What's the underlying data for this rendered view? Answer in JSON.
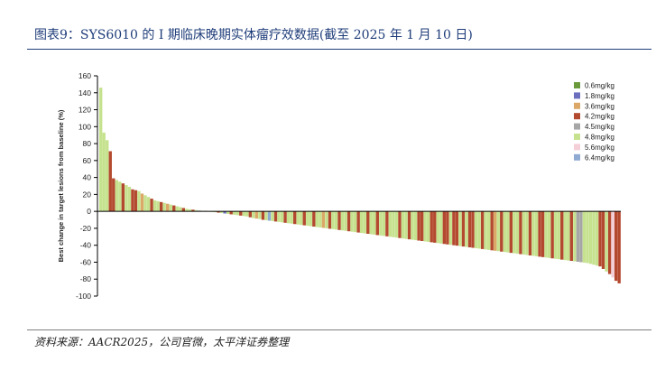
{
  "figure_title": "图表9：SYS6010 的 I 期临床晚期实体瘤疗效数据(截至 2025 年 1 月 10 日)",
  "source_note": "资料来源：AACR2025，公司官微，太平洋证券整理",
  "chart_data": {
    "type": "bar",
    "title": "",
    "xlabel": "",
    "ylabel": "Best change in target lesions from baseline (%)",
    "ylim": [
      -100,
      160
    ],
    "yticks": [
      160,
      140,
      120,
      100,
      80,
      60,
      40,
      20,
      0,
      -20,
      -40,
      -60,
      -80,
      -100
    ],
    "grid": false,
    "legend_position": "top-right",
    "series": [
      {
        "name": "0.6mg/kg",
        "color": "#6a9a3c"
      },
      {
        "name": "1.8mg/kg",
        "color": "#6b6fbd"
      },
      {
        "name": "3.6mg/kg",
        "color": "#dba868"
      },
      {
        "name": "4.2mg/kg",
        "color": "#b3492e"
      },
      {
        "name": "4.5mg/kg",
        "color": "#a6a6a6"
      },
      {
        "name": "4.8mg/kg",
        "color": "#c6e28f"
      },
      {
        "name": "5.6mg/kg",
        "color": "#f4cfd7"
      },
      {
        "name": "6.4mg/kg",
        "color": "#8eaad2"
      }
    ],
    "bars": [
      {
        "v": 146,
        "s": 5
      },
      {
        "v": 93,
        "s": 5
      },
      {
        "v": 84,
        "s": 5
      },
      {
        "v": 71,
        "s": 3
      },
      {
        "v": 39,
        "s": 3
      },
      {
        "v": 37,
        "s": 5
      },
      {
        "v": 35,
        "s": 5
      },
      {
        "v": 33,
        "s": 3
      },
      {
        "v": 31,
        "s": 5
      },
      {
        "v": 29,
        "s": 5
      },
      {
        "v": 26,
        "s": 3
      },
      {
        "v": 25,
        "s": 3
      },
      {
        "v": 24,
        "s": 5
      },
      {
        "v": 21,
        "s": 2
      },
      {
        "v": 19,
        "s": 5
      },
      {
        "v": 17,
        "s": 5
      },
      {
        "v": 15,
        "s": 3
      },
      {
        "v": 13,
        "s": 5
      },
      {
        "v": 12,
        "s": 5
      },
      {
        "v": 11,
        "s": 3
      },
      {
        "v": 10,
        "s": 5
      },
      {
        "v": 9,
        "s": 2
      },
      {
        "v": 8,
        "s": 5
      },
      {
        "v": 7,
        "s": 3
      },
      {
        "v": 6,
        "s": 5
      },
      {
        "v": 5,
        "s": 5
      },
      {
        "v": 4,
        "s": 3
      },
      {
        "v": 3,
        "s": 5
      },
      {
        "v": 2.5,
        "s": 5
      },
      {
        "v": 2,
        "s": 3
      },
      {
        "v": 1.5,
        "s": 5
      },
      {
        "v": 1,
        "s": 4
      },
      {
        "v": 0.7,
        "s": 5
      },
      {
        "v": 0.5,
        "s": 3
      },
      {
        "v": 0.3,
        "s": 5
      },
      {
        "v": 0,
        "s": 5
      },
      {
        "v": -1,
        "s": 5
      },
      {
        "v": -1.5,
        "s": 3
      },
      {
        "v": -2,
        "s": 5
      },
      {
        "v": -2.5,
        "s": 1
      },
      {
        "v": -3,
        "s": 5
      },
      {
        "v": -3.5,
        "s": 3
      },
      {
        "v": -4,
        "s": 5
      },
      {
        "v": -4.5,
        "s": 5
      },
      {
        "v": -5,
        "s": 3
      },
      {
        "v": -5.5,
        "s": 5
      },
      {
        "v": -6,
        "s": 5
      },
      {
        "v": -7,
        "s": 3
      },
      {
        "v": -8,
        "s": 5
      },
      {
        "v": -8.5,
        "s": 2
      },
      {
        "v": -9,
        "s": 5
      },
      {
        "v": -10,
        "s": 3
      },
      {
        "v": -10.5,
        "s": 5
      },
      {
        "v": -11,
        "s": 7
      },
      {
        "v": -11.5,
        "s": 5
      },
      {
        "v": -12,
        "s": 3
      },
      {
        "v": -12.5,
        "s": 5
      },
      {
        "v": -13,
        "s": 5
      },
      {
        "v": -13.5,
        "s": 3
      },
      {
        "v": -14,
        "s": 5
      },
      {
        "v": -14.5,
        "s": 5
      },
      {
        "v": -15,
        "s": 3
      },
      {
        "v": -15.5,
        "s": 5
      },
      {
        "v": -16,
        "s": 5
      },
      {
        "v": -16.5,
        "s": 3
      },
      {
        "v": -17,
        "s": 5
      },
      {
        "v": -17.5,
        "s": 5
      },
      {
        "v": -18,
        "s": 3
      },
      {
        "v": -18.5,
        "s": 5
      },
      {
        "v": -19,
        "s": 5
      },
      {
        "v": -19.5,
        "s": 2
      },
      {
        "v": -20,
        "s": 5
      },
      {
        "v": -20.5,
        "s": 3
      },
      {
        "v": -21,
        "s": 5
      },
      {
        "v": -21.5,
        "s": 5
      },
      {
        "v": -22,
        "s": 3
      },
      {
        "v": -22.5,
        "s": 5
      },
      {
        "v": -23,
        "s": 5
      },
      {
        "v": -23.5,
        "s": 3
      },
      {
        "v": -24,
        "s": 5
      },
      {
        "v": -24.5,
        "s": 5
      },
      {
        "v": -25,
        "s": 3
      },
      {
        "v": -25.5,
        "s": 5
      },
      {
        "v": -26,
        "s": 5
      },
      {
        "v": -26.5,
        "s": 3
      },
      {
        "v": -27,
        "s": 5
      },
      {
        "v": -27.5,
        "s": 5
      },
      {
        "v": -28,
        "s": 3
      },
      {
        "v": -28.5,
        "s": 5
      },
      {
        "v": -29,
        "s": 5
      },
      {
        "v": -29.5,
        "s": 3
      },
      {
        "v": -30,
        "s": 5
      },
      {
        "v": -30.5,
        "s": 5
      },
      {
        "v": -31,
        "s": 5
      },
      {
        "v": -31.5,
        "s": 3
      },
      {
        "v": -32,
        "s": 5
      },
      {
        "v": -32.5,
        "s": 5
      },
      {
        "v": -33,
        "s": 3
      },
      {
        "v": -33.5,
        "s": 5
      },
      {
        "v": -34,
        "s": 5
      },
      {
        "v": -34.5,
        "s": 3
      },
      {
        "v": -35,
        "s": 3
      },
      {
        "v": -35.5,
        "s": 5
      },
      {
        "v": -36,
        "s": 5
      },
      {
        "v": -36.5,
        "s": 3
      },
      {
        "v": -37,
        "s": 3
      },
      {
        "v": -37.5,
        "s": 5
      },
      {
        "v": -38,
        "s": 5
      },
      {
        "v": -38.5,
        "s": 3
      },
      {
        "v": -39,
        "s": 3
      },
      {
        "v": -39.5,
        "s": 5
      },
      {
        "v": -40,
        "s": 3
      },
      {
        "v": -40.5,
        "s": 3
      },
      {
        "v": -41,
        "s": 5
      },
      {
        "v": -41.5,
        "s": 3
      },
      {
        "v": -42,
        "s": 5
      },
      {
        "v": -42.5,
        "s": 3
      },
      {
        "v": -43,
        "s": 3
      },
      {
        "v": -43.5,
        "s": 5
      },
      {
        "v": -44,
        "s": 5
      },
      {
        "v": -44.5,
        "s": 3
      },
      {
        "v": -45,
        "s": 5
      },
      {
        "v": -45.5,
        "s": 5
      },
      {
        "v": -46,
        "s": 3
      },
      {
        "v": -46.5,
        "s": 2
      },
      {
        "v": -47,
        "s": 5
      },
      {
        "v": -47.5,
        "s": 3
      },
      {
        "v": -48,
        "s": 5
      },
      {
        "v": -48.5,
        "s": 5
      },
      {
        "v": -49,
        "s": 3
      },
      {
        "v": -49.5,
        "s": 5
      },
      {
        "v": -50,
        "s": 5
      },
      {
        "v": -50.5,
        "s": 3
      },
      {
        "v": -51,
        "s": 5
      },
      {
        "v": -51.5,
        "s": 5
      },
      {
        "v": -52,
        "s": 3
      },
      {
        "v": -52.5,
        "s": 5
      },
      {
        "v": -53,
        "s": 5
      },
      {
        "v": -53.5,
        "s": 3
      },
      {
        "v": -54,
        "s": 3
      },
      {
        "v": -54.5,
        "s": 5
      },
      {
        "v": -55,
        "s": 5
      },
      {
        "v": -55.5,
        "s": 3
      },
      {
        "v": -56,
        "s": 5
      },
      {
        "v": -56.5,
        "s": 5
      },
      {
        "v": -57,
        "s": 3
      },
      {
        "v": -57.5,
        "s": 5
      },
      {
        "v": -58,
        "s": 5
      },
      {
        "v": -58.5,
        "s": 3
      },
      {
        "v": -59,
        "s": 5
      },
      {
        "v": -59.5,
        "s": 4
      },
      {
        "v": -60,
        "s": 4
      },
      {
        "v": -60.5,
        "s": 5
      },
      {
        "v": -61,
        "s": 5
      },
      {
        "v": -62,
        "s": 5
      },
      {
        "v": -63,
        "s": 5
      },
      {
        "v": -64,
        "s": 5
      },
      {
        "v": -65,
        "s": 3
      },
      {
        "v": -68,
        "s": 3
      },
      {
        "v": -71,
        "s": 5
      },
      {
        "v": -74,
        "s": 3
      },
      {
        "v": -78,
        "s": 6
      },
      {
        "v": -82,
        "s": 3
      },
      {
        "v": -85,
        "s": 3
      }
    ]
  }
}
